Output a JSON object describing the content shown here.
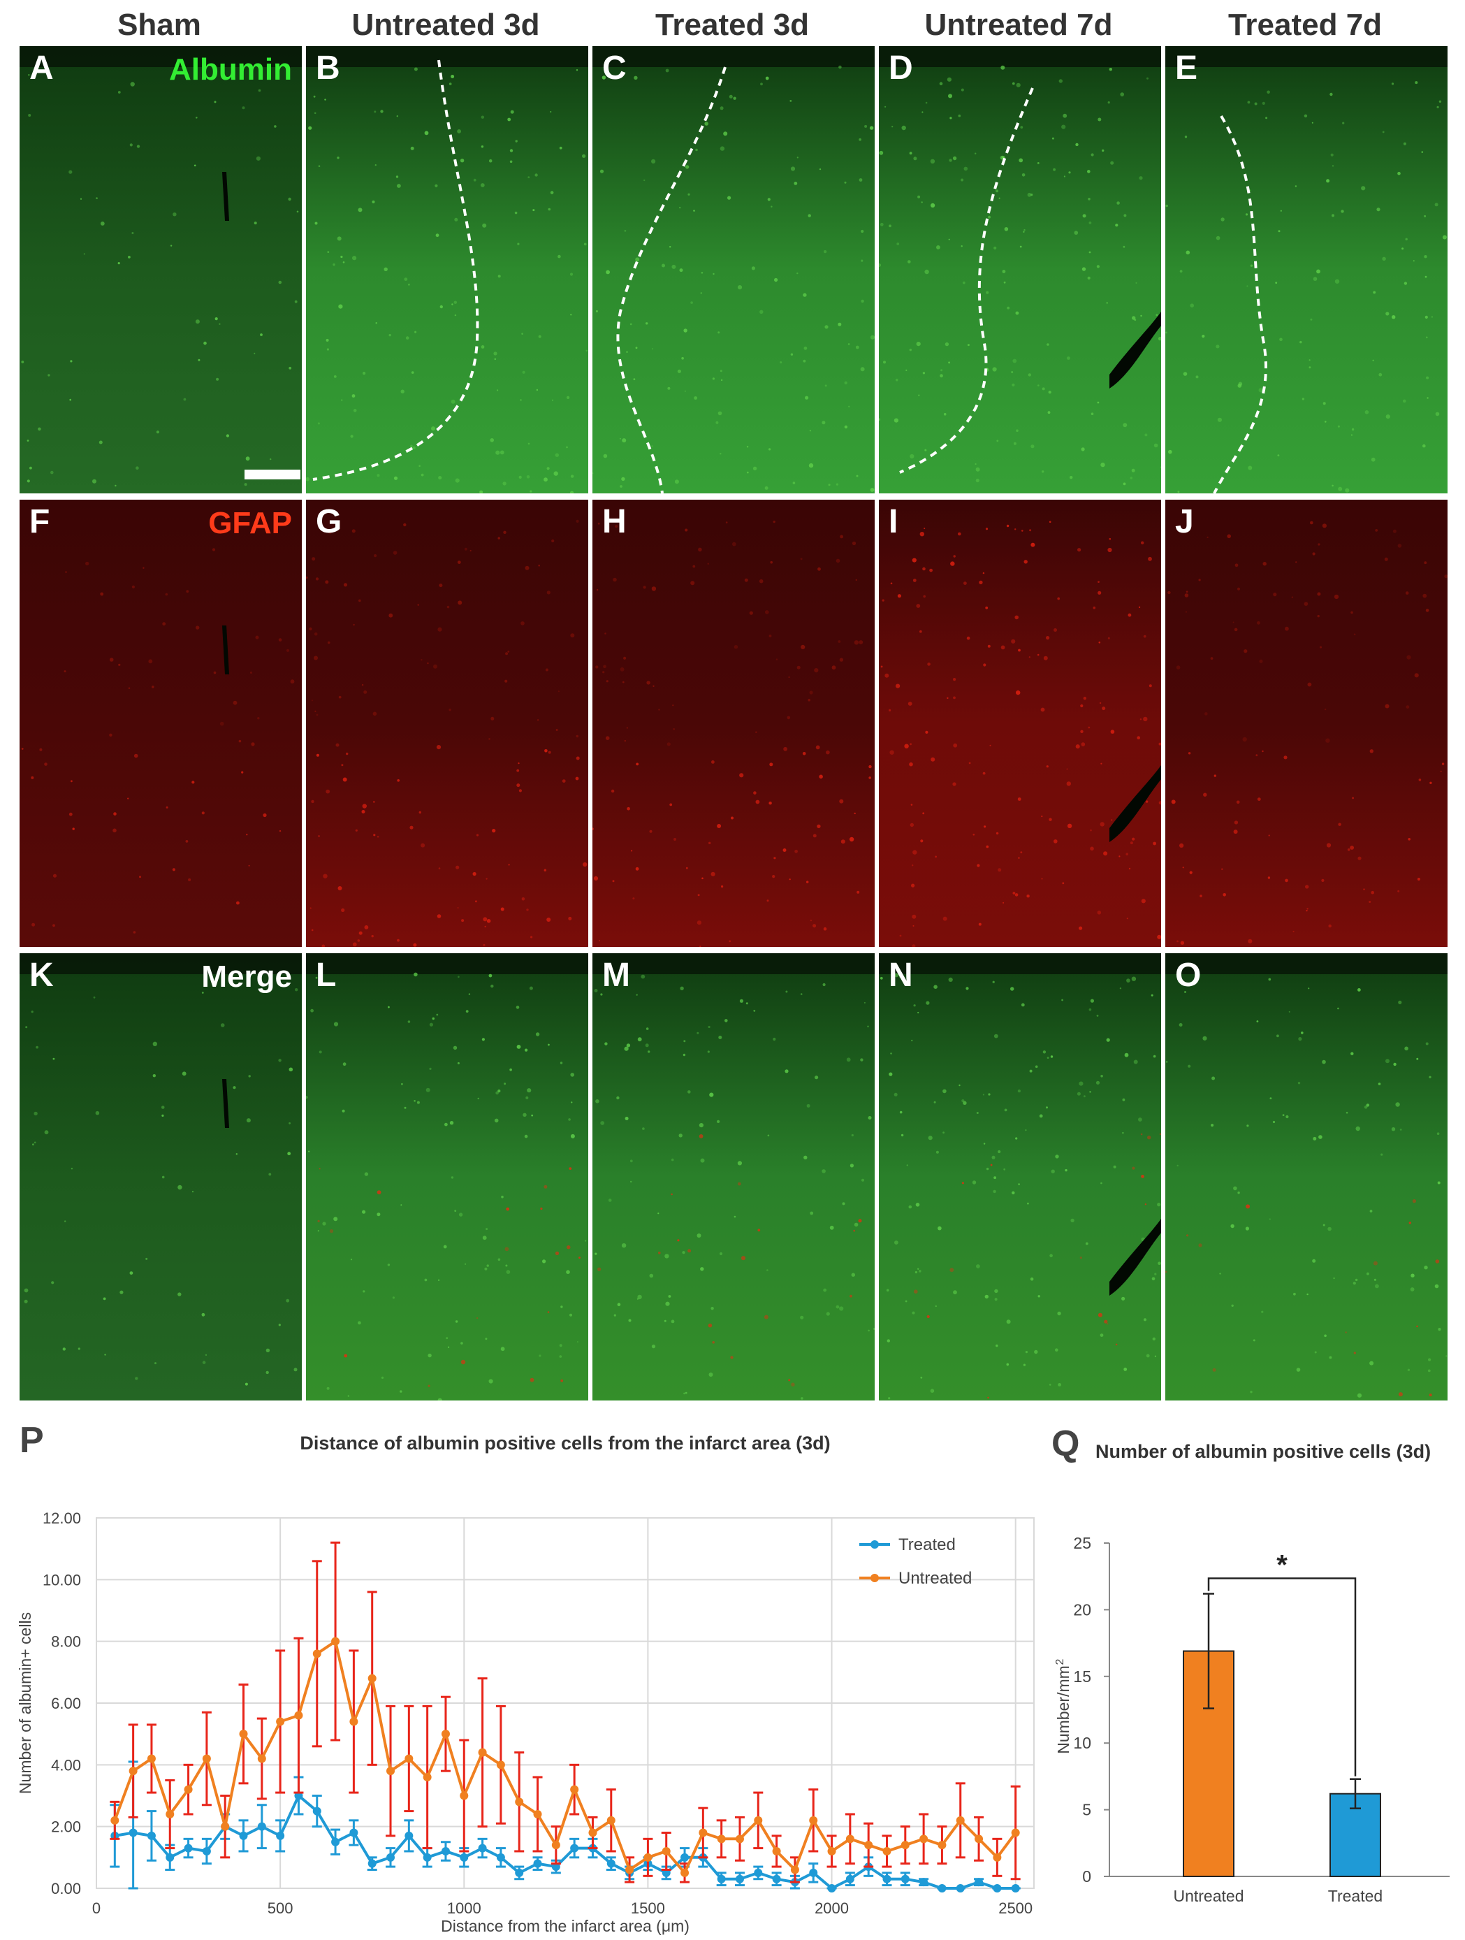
{
  "columns": [
    "Sham",
    "Untreated 3d",
    "Treated 3d",
    "Untreated 7d",
    "Treated 7d"
  ],
  "rows": [
    {
      "stain": "albumin",
      "marker": "Albumin",
      "marker_color": "#33ee33",
      "labels": [
        "A",
        "B",
        "C",
        "D",
        "E"
      ]
    },
    {
      "stain": "gfap",
      "marker": "GFAP",
      "marker_color": "#ff3b1a",
      "labels": [
        "F",
        "G",
        "H",
        "I",
        "J"
      ]
    },
    {
      "stain": "merge",
      "marker": "Merge",
      "marker_color": "#ffffff",
      "labels": [
        "K",
        "L",
        "M",
        "N",
        "O"
      ]
    }
  ],
  "colors": {
    "green": "#2f9a2f",
    "red": "#a81b10",
    "treated": "#1f9ad6",
    "untreated": "#f08020",
    "errorbar": "#e8251a"
  },
  "figure_letters": {
    "P": "P",
    "Q": "Q"
  },
  "chart_data": [
    {
      "type": "line",
      "title": "Distance of albumin positive cells from the infarct area (3d)",
      "xlabel": "Distance from the infarct area (μm)",
      "ylabel": "Number of albumin+ cells",
      "xlim": [
        0,
        2550
      ],
      "ylim": [
        0,
        12
      ],
      "xticks": [
        0,
        500,
        1000,
        1500,
        2000,
        2500
      ],
      "xtick_labels": [
        "0",
        "500",
        "1000",
        "1500",
        "2000",
        "2500"
      ],
      "yticks": [
        0,
        2,
        4,
        6,
        8,
        10,
        12
      ],
      "ytick_labels": [
        "0.00",
        "2.00",
        "4.00",
        "6.00",
        "8.00",
        "10.00",
        "12.00"
      ],
      "grid": true,
      "legend": "top-right",
      "x": [
        50,
        100,
        150,
        200,
        250,
        300,
        350,
        400,
        450,
        500,
        550,
        600,
        650,
        700,
        750,
        800,
        850,
        900,
        950,
        1000,
        1050,
        1100,
        1150,
        1200,
        1250,
        1300,
        1350,
        1400,
        1450,
        1500,
        1550,
        1600,
        1650,
        1700,
        1750,
        1800,
        1850,
        1900,
        1950,
        2000,
        2050,
        2100,
        2150,
        2200,
        2250,
        2300,
        2350,
        2400,
        2450,
        2500
      ],
      "series": [
        {
          "name": "Treated",
          "values": [
            1.7,
            1.8,
            1.7,
            1.0,
            1.3,
            1.2,
            2.0,
            1.7,
            2.0,
            1.7,
            3.0,
            2.5,
            1.5,
            1.8,
            0.8,
            1.0,
            1.7,
            1.0,
            1.2,
            1.0,
            1.3,
            1.0,
            0.5,
            0.8,
            0.7,
            1.3,
            1.3,
            0.8,
            0.5,
            0.8,
            0.5,
            1.0,
            1.0,
            0.3,
            0.3,
            0.5,
            0.3,
            0.2,
            0.5,
            0.0,
            0.3,
            0.7,
            0.3,
            0.3,
            0.2,
            0.0,
            0.0,
            0.2,
            0.0,
            0.0
          ],
          "errors": [
            1.0,
            2.3,
            0.8,
            0.4,
            0.3,
            0.4,
            0.4,
            0.5,
            0.7,
            0.5,
            0.6,
            0.5,
            0.4,
            0.4,
            0.2,
            0.3,
            0.5,
            0.3,
            0.3,
            0.3,
            0.3,
            0.3,
            0.2,
            0.2,
            0.2,
            0.3,
            0.3,
            0.2,
            0.2,
            0.2,
            0.2,
            0.3,
            0.3,
            0.2,
            0.2,
            0.2,
            0.2,
            0.2,
            0.3,
            0.0,
            0.2,
            0.3,
            0.2,
            0.2,
            0.1,
            0.0,
            0.0,
            0.1,
            0.0,
            0.0
          ]
        },
        {
          "name": "Untreated",
          "values": [
            2.2,
            3.8,
            4.2,
            2.4,
            3.2,
            4.2,
            2.0,
            5.0,
            4.2,
            5.4,
            5.6,
            7.6,
            8.0,
            5.4,
            6.8,
            3.8,
            4.2,
            3.6,
            5.0,
            3.0,
            4.4,
            4.0,
            2.8,
            2.4,
            1.4,
            3.2,
            1.8,
            2.2,
            0.6,
            1.0,
            1.2,
            0.5,
            1.8,
            1.6,
            1.6,
            2.2,
            1.2,
            0.6,
            2.2,
            1.2,
            1.6,
            1.4,
            1.2,
            1.4,
            1.6,
            1.4,
            2.2,
            1.6,
            1.0,
            1.8
          ],
          "errors": [
            0.6,
            1.5,
            1.1,
            1.1,
            0.8,
            1.5,
            1.0,
            1.6,
            1.3,
            2.3,
            2.5,
            3.0,
            3.2,
            2.3,
            2.8,
            2.1,
            1.7,
            2.3,
            1.2,
            1.8,
            2.4,
            1.9,
            1.6,
            1.2,
            0.6,
            0.8,
            0.5,
            1.0,
            0.4,
            0.6,
            0.6,
            0.3,
            0.8,
            0.6,
            0.7,
            0.9,
            0.5,
            0.4,
            1.0,
            0.5,
            0.8,
            0.7,
            0.5,
            0.6,
            0.8,
            0.6,
            1.2,
            0.7,
            0.6,
            1.5
          ]
        }
      ]
    },
    {
      "type": "bar",
      "title": "Number of albumin positive cells (3d)",
      "ylabel": "Number/mm",
      "ylabel_sup": "2",
      "categories": [
        "Untreated",
        "Treated"
      ],
      "values": [
        16.9,
        6.2
      ],
      "errors": [
        4.3,
        1.1
      ],
      "ylim": [
        0,
        25
      ],
      "yticks": [
        0,
        5,
        10,
        15,
        20,
        25
      ],
      "significance": "*"
    }
  ]
}
